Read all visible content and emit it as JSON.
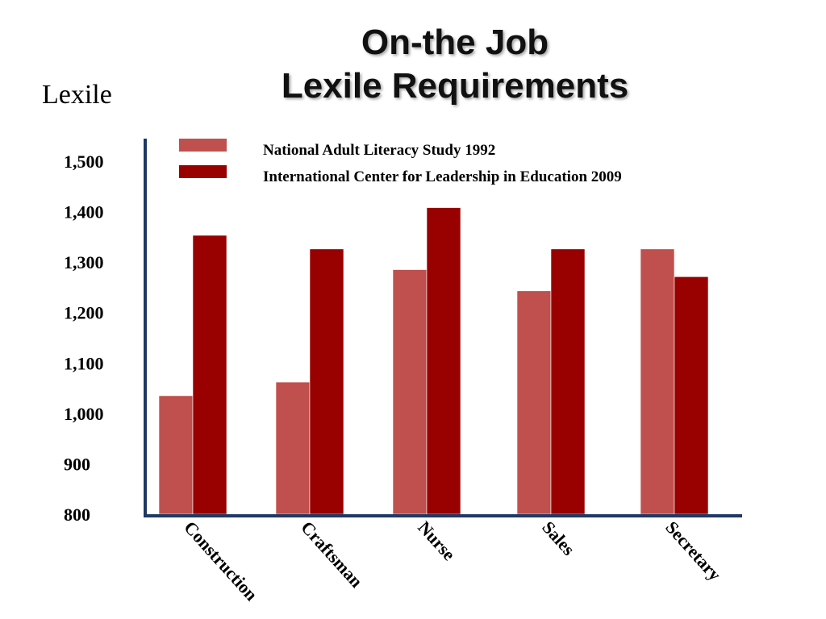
{
  "chart_data": {
    "type": "bar",
    "title_lines": [
      "On-the Job",
      "Lexile Requirements"
    ],
    "ylabel": "Lexile",
    "xlabel": "",
    "categories": [
      "Construction",
      "Craftsman",
      "Nurse",
      "Sales",
      "Secretary"
    ],
    "series": [
      {
        "name": "National Adult Literacy Study 1992",
        "color": "#c0504d",
        "values": [
          1035,
          1062,
          1285,
          1243,
          1326
        ]
      },
      {
        "name": "International Center for Leadership in Education 2009",
        "color": "#990000",
        "values": [
          1353,
          1326,
          1408,
          1326,
          1271
        ]
      }
    ],
    "ylim": [
      800,
      1500
    ],
    "yticks": [
      800,
      900,
      1000,
      1100,
      1200,
      1300,
      1400,
      1500
    ],
    "ytick_labels": [
      "800",
      "900",
      "1,000",
      "1,100",
      "1,200",
      "1,300",
      "1,400",
      "1,500"
    ],
    "grid": false,
    "legend_position": "top"
  },
  "axis_color": "#1f3864"
}
